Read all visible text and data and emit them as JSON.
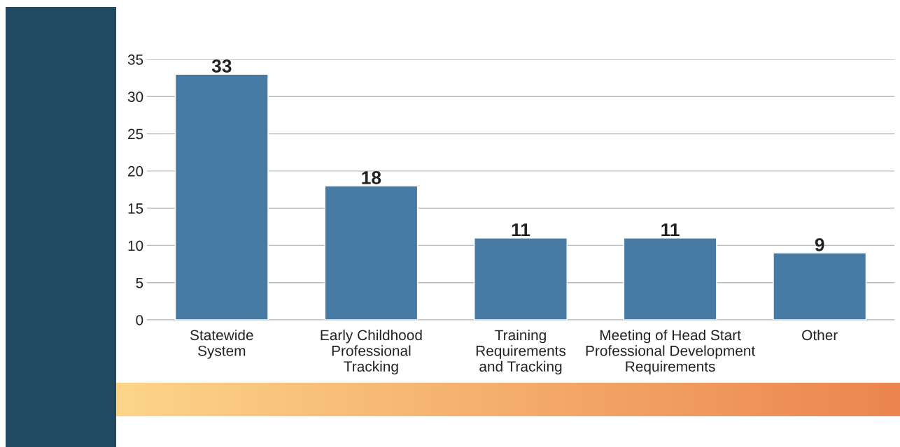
{
  "chart_data": {
    "type": "bar",
    "categories": [
      "Statewide\nSystem",
      "Early Childhood\nProfessional\nTracking",
      "Training\nRequirements\nand Tracking",
      "Meeting of Head Start\nProfessional Development\nRequirements",
      "Other"
    ],
    "values": [
      33,
      18,
      11,
      11,
      9
    ],
    "color": "#477ba3",
    "ylim": [
      0,
      35
    ],
    "yticks": [
      0,
      5,
      10,
      15,
      20,
      25,
      30,
      35
    ],
    "grid": "y",
    "data_labels": true
  }
}
